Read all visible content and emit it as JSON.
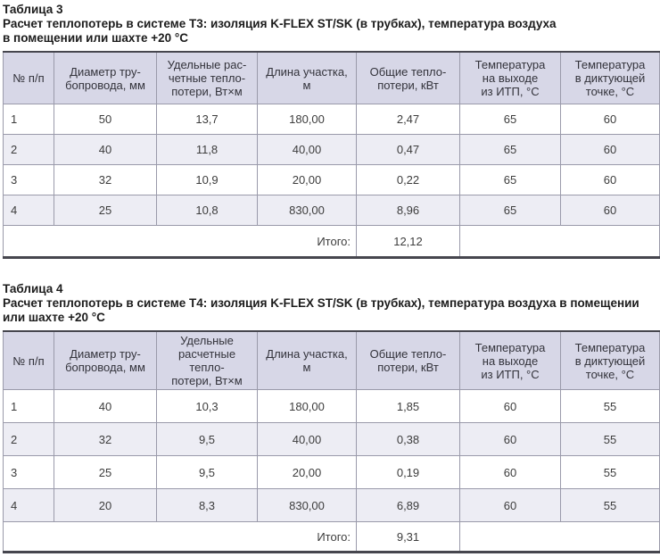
{
  "colors": {
    "header_bg": "#d7d7e7",
    "stripe_bg": "#ededf4",
    "row_bg": "#ffffff",
    "grid": "#9a9aaa",
    "frame": "#46464e",
    "text": "#3d3d3d",
    "title_text": "#1c1c1c"
  },
  "tables": [
    {
      "caption": "Таблица 3",
      "description": "Расчет теплопотерь в системе Т3: изоляция K-FLEX ST/SK (в трубках), температура воздуха\nв помещении или шахте +20 °С",
      "headers": [
        "№ п/п",
        "Диаметр тру-\nбопровода, мм",
        "Удельные рас-\nчетные тепло-\nпотери, Вт×м",
        "Длина участка, м",
        "Общие тепло-\nпотери, кВт",
        "Температура\nна выходе\nиз ИТП, °С",
        "Температура\nв диктующей\nточке, °С"
      ],
      "rows": [
        [
          "1",
          "50",
          "13,7",
          "180,00",
          "2,47",
          "65",
          "60"
        ],
        [
          "2",
          "40",
          "11,8",
          "40,00",
          "0,47",
          "65",
          "60"
        ],
        [
          "3",
          "32",
          "10,9",
          "20,00",
          "0,22",
          "65",
          "60"
        ],
        [
          "4",
          "25",
          "10,8",
          "830,00",
          "8,96",
          "65",
          "60"
        ]
      ],
      "total_label": "Итого:",
      "total_value": "12,12"
    },
    {
      "caption": "Таблица 4",
      "description": "Расчет теплопотерь в системе Т4: изоляция K-FLEX ST/SK (в трубках), температура воздуха в помещении\nили шахте +20 °С",
      "headers": [
        "№ п/п",
        "Диаметр тру-\nбопровода, мм",
        "Удельные\nрасчетные тепло-\nпотери, Вт×м",
        "Длина участка, м",
        "Общие тепло-\nпотери, кВт",
        "Температура\nна выходе\nиз ИТП, °С",
        "Температура\nв диктующей\nточке, °С"
      ],
      "rows": [
        [
          "1",
          "40",
          "10,3",
          "180,00",
          "1,85",
          "60",
          "55"
        ],
        [
          "2",
          "32",
          "9,5",
          "40,00",
          "0,38",
          "60",
          "55"
        ],
        [
          "3",
          "25",
          "9,5",
          "20,00",
          "0,19",
          "60",
          "55"
        ],
        [
          "4",
          "20",
          "8,3",
          "830,00",
          "6,89",
          "60",
          "55"
        ]
      ],
      "total_label": "Итого:",
      "total_value": "9,31"
    }
  ]
}
